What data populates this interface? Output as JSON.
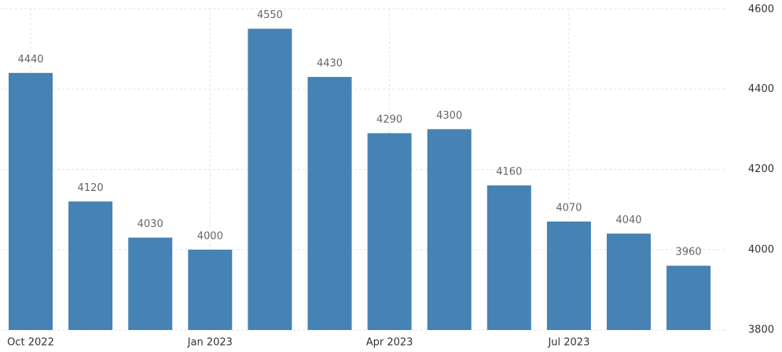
{
  "chart_data": {
    "type": "bar",
    "categories": [
      "Oct 2022",
      null,
      null,
      "Jan 2023",
      null,
      null,
      "Apr 2023",
      null,
      null,
      "Jul 2023",
      null,
      null
    ],
    "values": [
      4440,
      4120,
      4030,
      4000,
      4550,
      4430,
      4290,
      4300,
      4160,
      4070,
      4040,
      3960
    ],
    "color": "#4682b4",
    "ylim": [
      3800,
      4600
    ],
    "yticks": [
      3800,
      4000,
      4200,
      4400,
      4600
    ],
    "grid": true
  }
}
